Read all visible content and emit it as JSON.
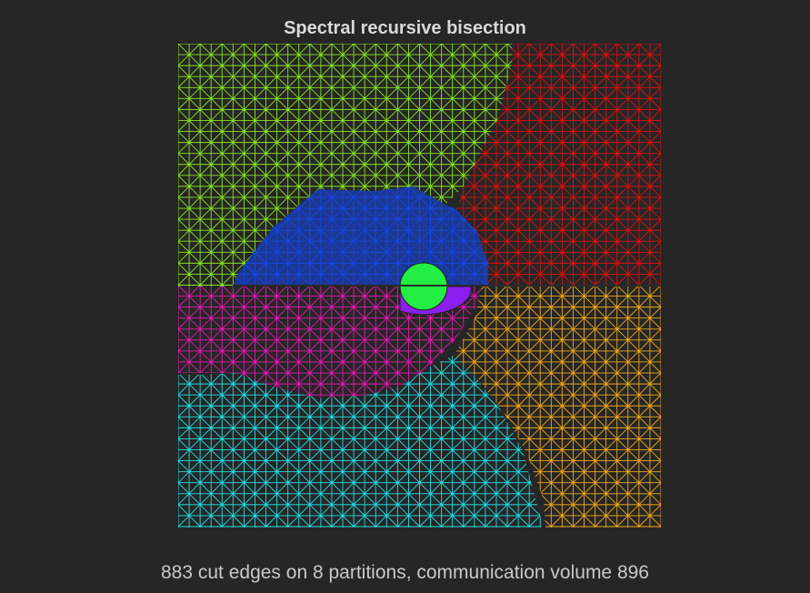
{
  "figure": {
    "title": "Spectral recursive bisection",
    "caption": "883 cut edges on 8 partitions, communication volume 896"
  },
  "partitions": [
    {
      "name": "yellow-green",
      "color": "#88e51e"
    },
    {
      "name": "red",
      "color": "#e01010"
    },
    {
      "name": "blue",
      "color": "#1446e6"
    },
    {
      "name": "magenta",
      "color": "#e619b4"
    },
    {
      "name": "cyan",
      "color": "#1ee0e6"
    },
    {
      "name": "orange",
      "color": "#f0a818"
    },
    {
      "name": "green",
      "color": "#22ee44"
    },
    {
      "name": "violet",
      "color": "#8c1ef0"
    }
  ],
  "grid": {
    "cells": 44
  }
}
